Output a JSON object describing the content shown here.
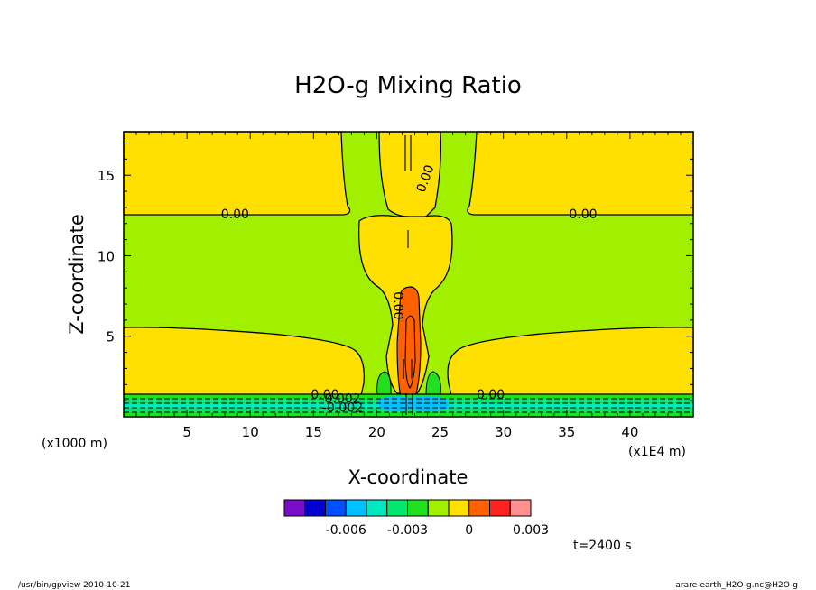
{
  "chart_data": {
    "type": "heatmap",
    "title": "H2O-g Mixing Ratio",
    "xlabel": "X-coordinate",
    "ylabel": "Z-coordinate",
    "x_unit_left": "(x1000 m)",
    "x_unit_right": "(x1E4 m)",
    "xlim": [
      0,
      45
    ],
    "ylim": [
      0,
      17.7
    ],
    "x_ticks": [
      5,
      10,
      15,
      20,
      25,
      30,
      35,
      40
    ],
    "x_tick_labels": [
      "5",
      "10",
      "15",
      "20",
      "25",
      "30",
      "35",
      "40"
    ],
    "y_ticks": [
      5,
      10,
      15
    ],
    "y_tick_labels": [
      "5",
      "10",
      "15"
    ],
    "time_label": "t=2400 s",
    "contour_labels": [
      {
        "text": "0.00",
        "x": 8.8,
        "z": 12.6,
        "rot": 0
      },
      {
        "text": "0.00",
        "x": 36.3,
        "z": 12.6,
        "rot": 0
      },
      {
        "text": "0.00",
        "x": 23.8,
        "z": 14.8,
        "rot": -70
      },
      {
        "text": "0.00",
        "x": 21.7,
        "z": 6.9,
        "rot": 90
      },
      {
        "text": "0.00",
        "x": 15.9,
        "z": 1.4,
        "rot": 0
      },
      {
        "text": "0.00",
        "x": 29.0,
        "z": 1.4,
        "rot": 0
      },
      {
        "text": "0.002",
        "x": 17.3,
        "z": 1.15,
        "rot": 0
      },
      {
        "text": "-0.002",
        "x": 17.3,
        "z": 0.6,
        "rot": 0
      }
    ],
    "colorbar": {
      "colors": [
        "#7a0cc7",
        "#0000d0",
        "#0050ff",
        "#00c0ff",
        "#00e8c0",
        "#00e870",
        "#20e020",
        "#a0f000",
        "#ffe000",
        "#ff6000",
        "#ff2020",
        "#ff9090"
      ],
      "tick_labels": [
        "-0.006",
        "-0.003",
        "0",
        "0.003"
      ],
      "tick_values": [
        -0.006,
        -0.003,
        0,
        0.003
      ],
      "levels": [
        -0.009,
        -0.008,
        -0.007,
        -0.006,
        -0.005,
        -0.004,
        -0.003,
        -0.002,
        -0.001,
        0,
        0.001,
        0.002,
        0.003
      ]
    },
    "footer_left": "/usr/bin/gpview  2010-10-21",
    "footer_right": "arare-earth_H2O-g.nc@H2O-g"
  }
}
